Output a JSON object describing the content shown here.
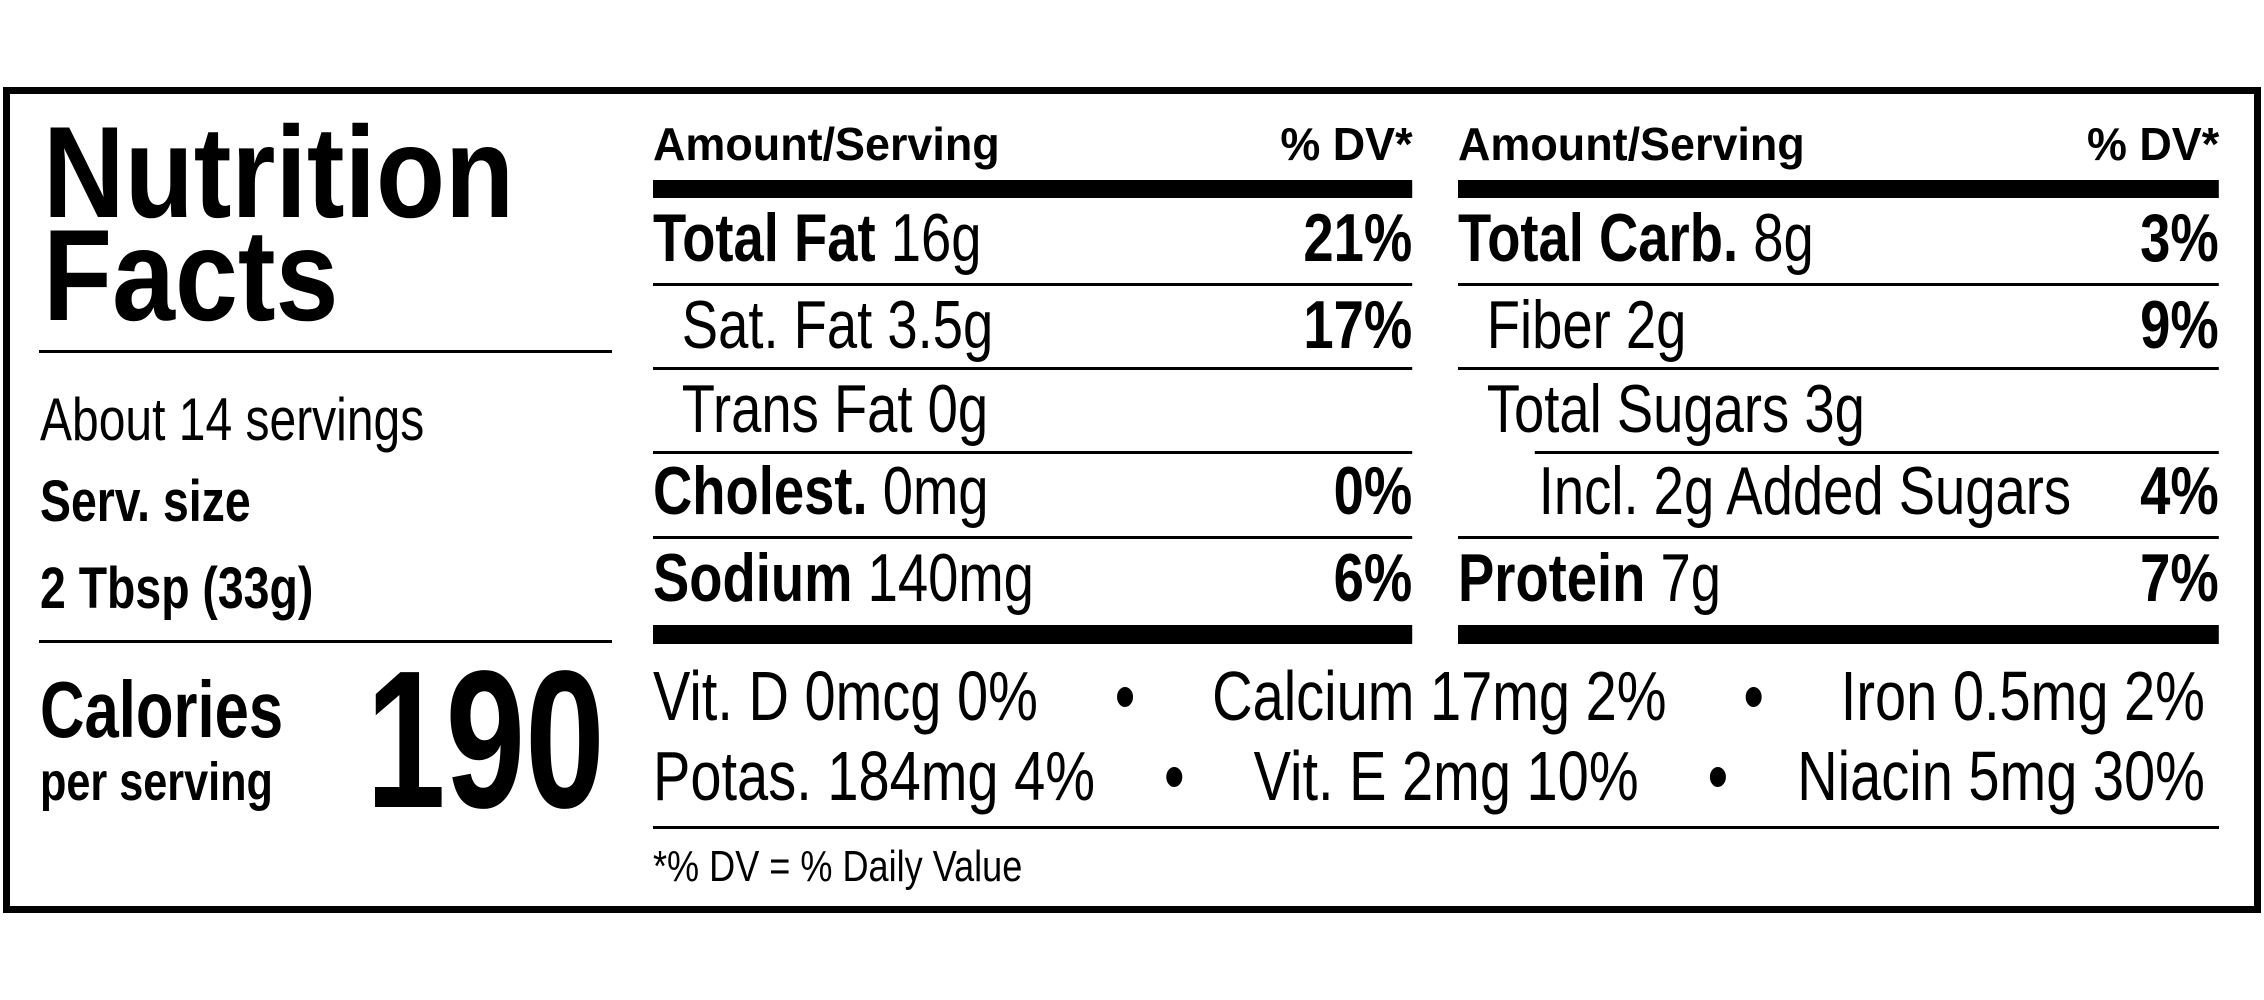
{
  "title_line1": "Nutrition",
  "title_line2": "Facts",
  "servings": "About 14 servings",
  "serving_size_label": "Serv. size",
  "serving_size_value": "2 Tbsp (33g)",
  "calories_label": "Calories",
  "calories_sub": "per serving",
  "calories_value": "190",
  "header": {
    "amount": "Amount/Serving",
    "dv": "% DV*"
  },
  "left_nutrients": [
    {
      "name": "Total Fat",
      "amount": "16g",
      "dv": "21%"
    },
    {
      "name": "Sat. Fat",
      "amount": "3.5g",
      "dv": "17%"
    },
    {
      "name": "Trans Fat",
      "amount": "0g",
      "dv": ""
    },
    {
      "name": "Cholest.",
      "amount": "0mg",
      "dv": "0%"
    },
    {
      "name": "Sodium",
      "amount": "140mg",
      "dv": "6%"
    }
  ],
  "right_nutrients": [
    {
      "name": "Total Carb.",
      "amount": "8g",
      "dv": "3%"
    },
    {
      "name": "Fiber",
      "amount": "2g",
      "dv": "9%"
    },
    {
      "name": "Total Sugars",
      "amount": "3g",
      "dv": ""
    },
    {
      "name": "Incl. 2g Added Sugars",
      "amount": "",
      "dv": "4%"
    },
    {
      "name": "Protein",
      "amount": "7g",
      "dv": "7%"
    }
  ],
  "vitamins_row1": [
    "Vit. D 0mcg 0%",
    "Calcium 17mg 2%",
    "Iron 0.5mg 2%"
  ],
  "vitamins_row2": [
    "Potas. 184mg 4%",
    "Vit. E 2mg 10%",
    "Niacin 5mg 30%"
  ],
  "separator": "•",
  "footnote": "*% DV = % Daily Value"
}
